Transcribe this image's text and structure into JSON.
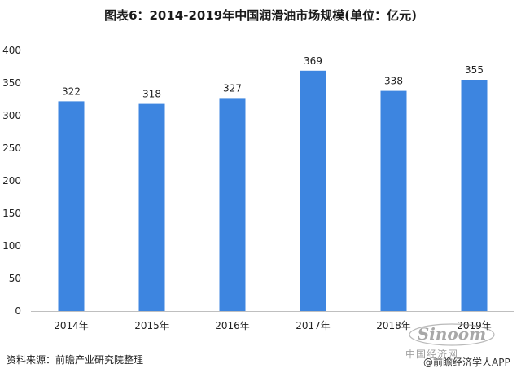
{
  "title": "图表6：2014-2019年中国润滑油市场规模(单位：亿元)",
  "chart_data": {
    "type": "bar",
    "title": "图表6：2014-2019年中国润滑油市场规模(单位：亿元)",
    "categories": [
      "2014年",
      "2015年",
      "2016年",
      "2017年",
      "2018年",
      "2019年"
    ],
    "values": [
      322,
      318,
      327,
      369,
      338,
      355
    ],
    "data_labels": [
      "322",
      "318",
      "327",
      "369",
      "338",
      "355"
    ],
    "yticks": [
      "0",
      "50",
      "100",
      "150",
      "200",
      "250",
      "300",
      "350",
      "400"
    ],
    "ylim": [
      0,
      400
    ],
    "xlabel": "",
    "ylabel": "",
    "grid": false,
    "bar_color": "#3d85e0"
  },
  "footer": {
    "source": "资料来源：前瞻产业研究院整理",
    "credit": "@前瞻经济学人APP",
    "logo_text": "中国经济网"
  },
  "colors": {
    "bar": "#3d85e0",
    "axis": "#bfbfbf",
    "text": "#222222"
  }
}
